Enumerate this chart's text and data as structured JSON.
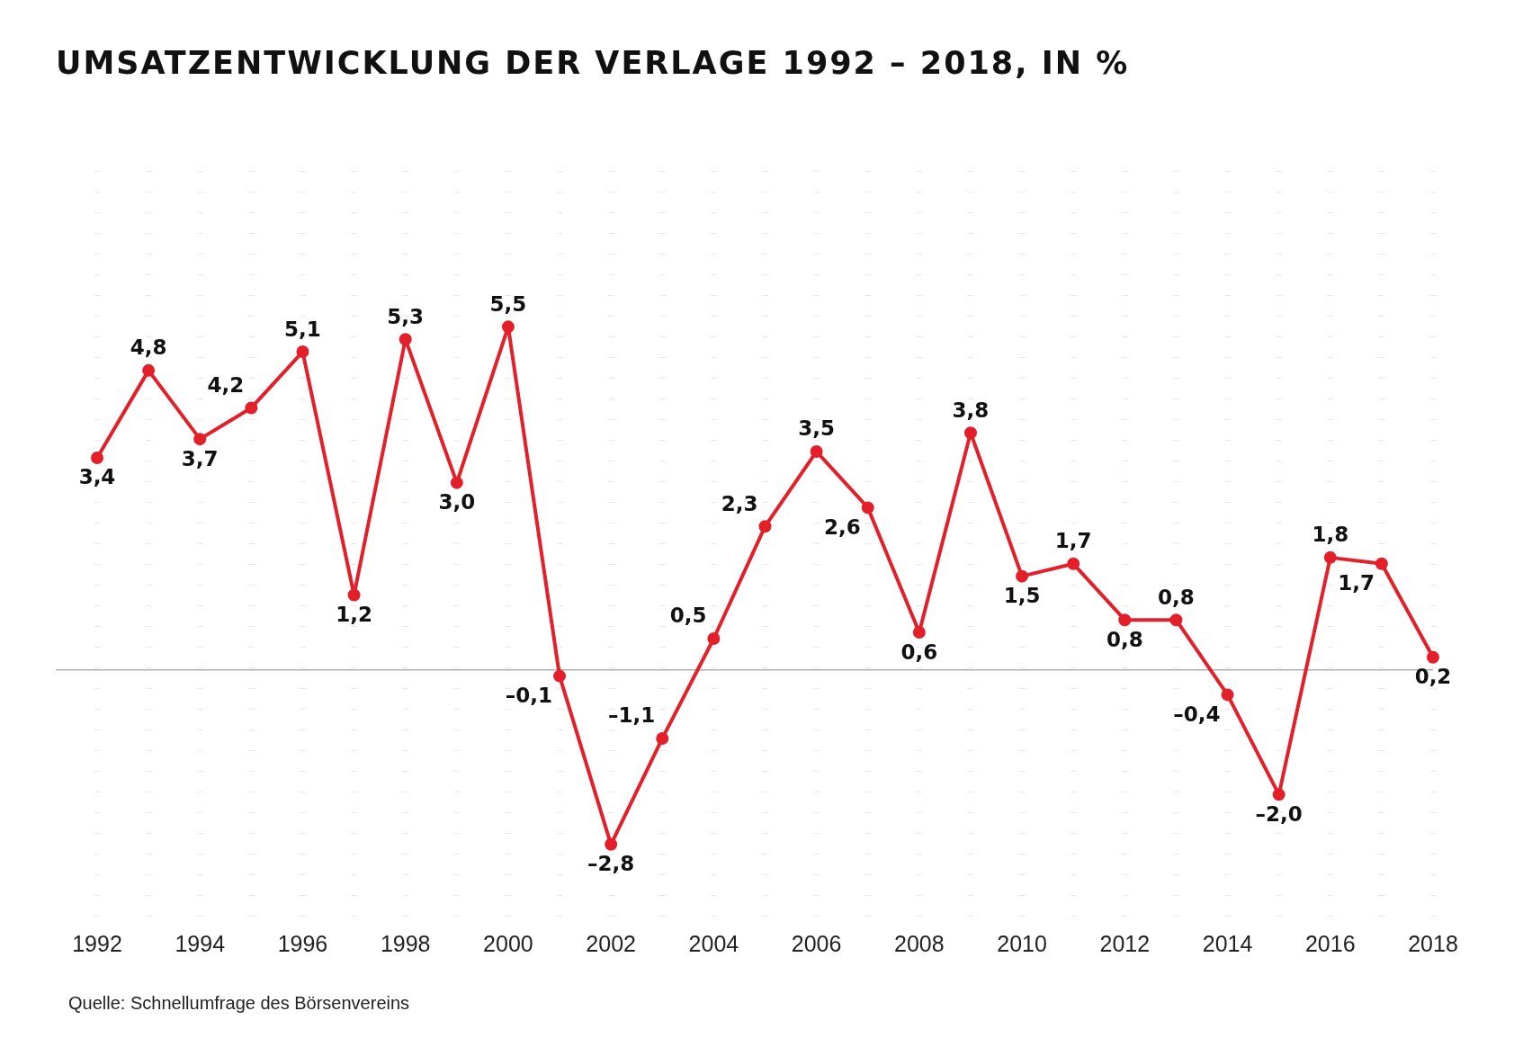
{
  "chart_data": {
    "type": "line",
    "title": "UMSATZENTWICKLUNG DER VERLAGE 1992 – 2018, IN %",
    "categories": [
      "1992",
      null,
      "1994",
      null,
      "1996",
      null,
      "1998",
      null,
      "2000",
      null,
      "2002",
      null,
      "2004",
      null,
      "2006",
      null,
      "2008",
      null,
      "2010",
      null,
      "2012",
      null,
      "2014",
      null,
      "2016",
      null,
      "2018"
    ],
    "series": [
      {
        "color": "#e3202a",
        "values": [
          3.4,
          4.8,
          3.7,
          4.2,
          5.1,
          1.2,
          5.3,
          3.0,
          5.5,
          -0.1,
          -2.8,
          -1.1,
          0.5,
          2.3,
          3.5,
          2.6,
          0.6,
          3.8,
          1.5,
          1.7,
          0.8,
          0.8,
          -0.4,
          -2.0,
          1.8,
          1.7,
          0.2
        ],
        "value_labels": [
          "3,4",
          "4,8",
          "3,7",
          "4,2",
          "5,1",
          "1,2",
          "5,3",
          "3,0",
          "5,5",
          "–0,1",
          "–2,8",
          "–1,1",
          "0,5",
          "2,3",
          "3,5",
          "2,6",
          "0,6",
          "3,8",
          "1,5",
          "1,7",
          "0,8",
          "0,8",
          "–0,4",
          "–2,0",
          "1,8",
          "1,7",
          "0,2"
        ]
      }
    ],
    "tick_labels": "x",
    "grid": "x",
    "marker": "circle",
    "line_style": "solid",
    "legend": false,
    "ref_lines": [
      {
        "axis": "y",
        "value": 0,
        "color": "#b0b0b0"
      }
    ],
    "annotations": [
      "Quelle: Schnellumfrage des Börsenvereins"
    ]
  }
}
